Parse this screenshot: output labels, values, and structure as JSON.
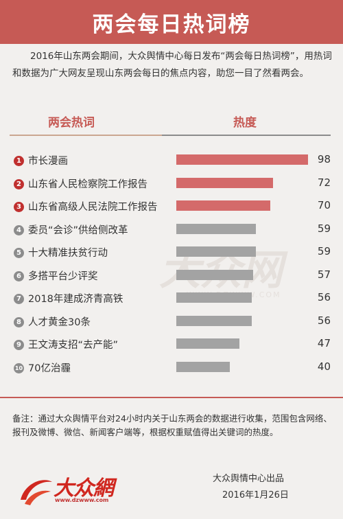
{
  "header": {
    "title": "两会每日热词榜"
  },
  "intro": "2016年山东两会期间，大众舆情中心每日发布“两会每日热词榜”，用热词和数据为广大网友呈现山东两会每日的焦点内容，助您一目了然看两会。",
  "columns": {
    "left": "两会热词",
    "right": "热度"
  },
  "colors": {
    "accent": "#c65a55",
    "top_bar": "#d46a6a",
    "other_bar": "#a3a3a3",
    "top_badge": "#c0302f",
    "other_badge": "#8c8c8c"
  },
  "chart_data": {
    "type": "bar",
    "orientation": "horizontal",
    "categories": [
      "市长漫画",
      "山东省人民检察院工作报告",
      "山东省高级人民法院工作报告",
      "委员“会诊”供给侧改革",
      "十大精准扶贫行动",
      "多搭平台少评奖",
      "2018年建成济青高铁",
      "人才黄金30条",
      "王文涛支招“去产能”",
      "70亿治霾"
    ],
    "ranks": [
      "1",
      "2",
      "3",
      "4",
      "5",
      "6",
      "7",
      "8",
      "9",
      "10"
    ],
    "values": [
      98,
      72,
      70,
      59,
      59,
      57,
      56,
      56,
      47,
      40
    ],
    "xlim": [
      0,
      100
    ],
    "title": "两会每日热词榜",
    "xlabel": "热度",
    "ylabel": "两会热词"
  },
  "watermark": {
    "text": "大众网",
    "url": "WWW.DZWWW.COM"
  },
  "footer": {
    "note": "备注：通过大众舆情平台对24小时内关于山东两会的数据进行收集，范围包含网络、报刊及微博、微信、新闻客户端等，根据权重赋值得出关键词的热度。",
    "logo_text": "大众網",
    "logo_url": "www.dzwww.com",
    "publisher": "大众舆情中心出品",
    "date": "2016年1月26日"
  }
}
